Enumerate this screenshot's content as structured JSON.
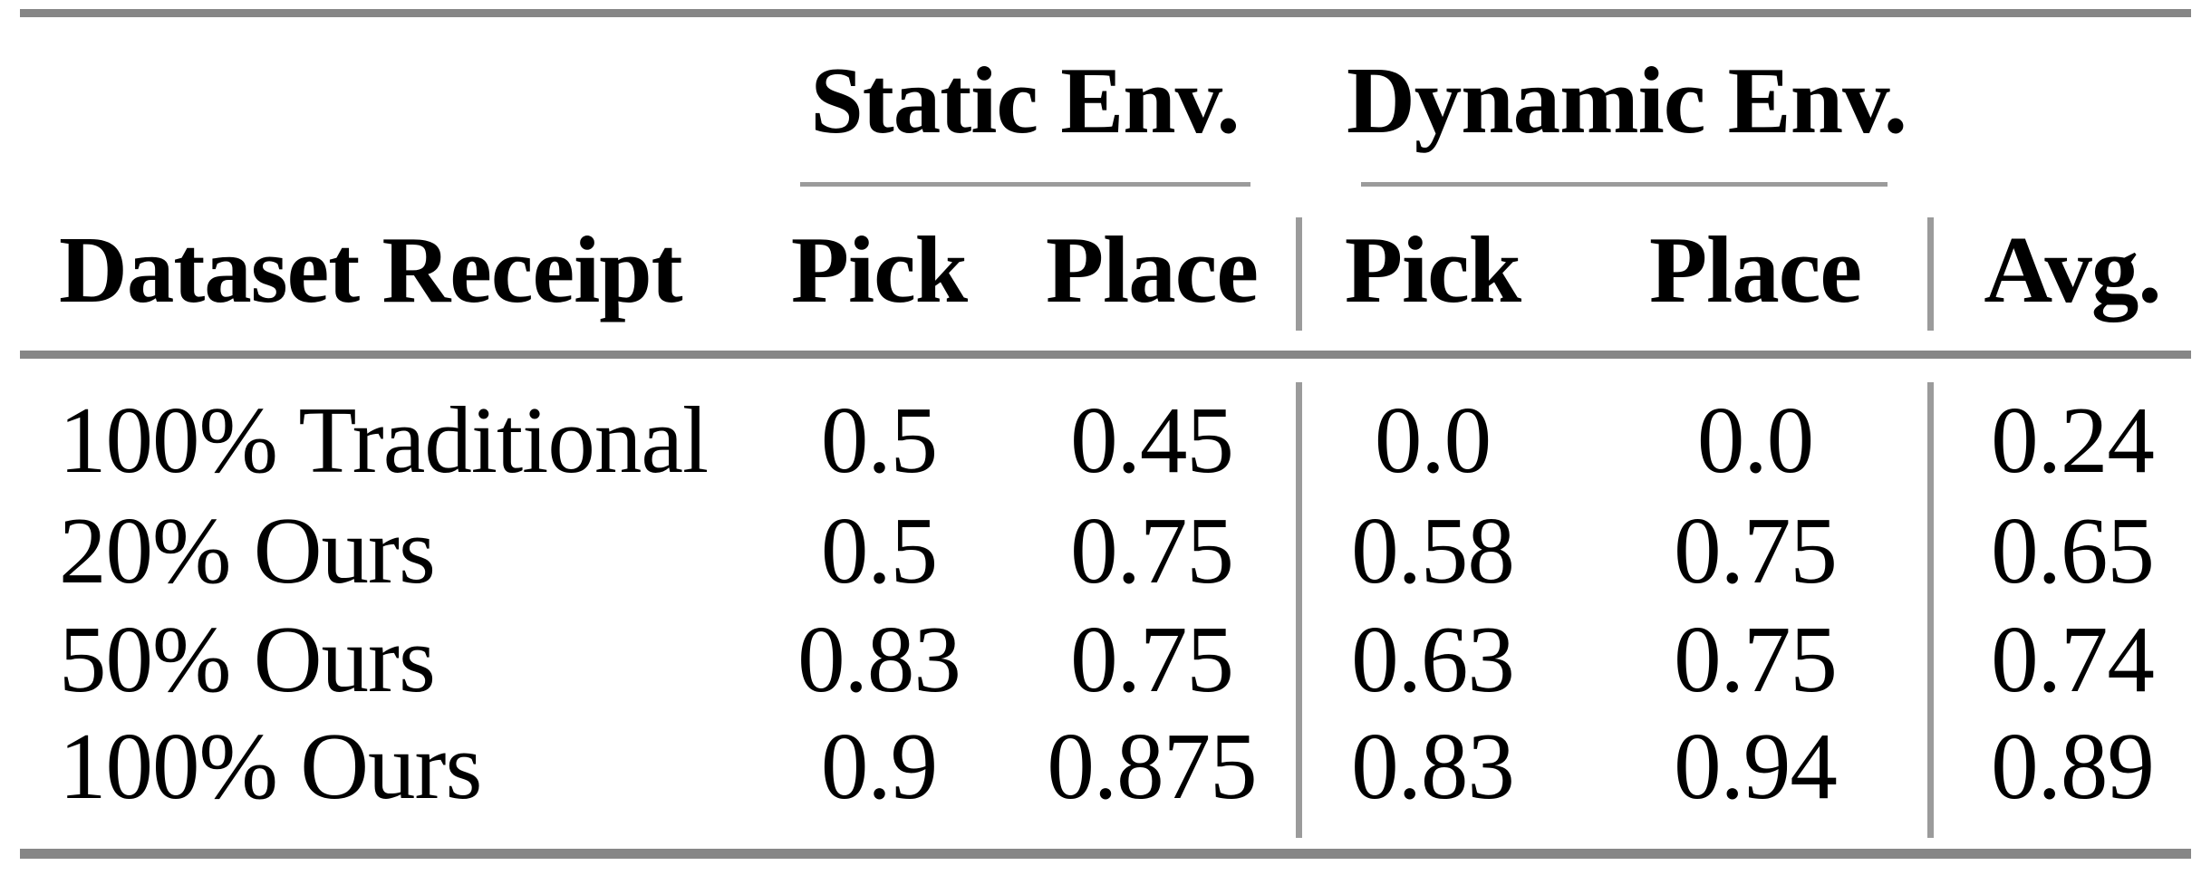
{
  "table": {
    "column_groups": [
      {
        "label": "Static Env."
      },
      {
        "label": "Dynamic Env."
      }
    ],
    "headers": {
      "row_label": "Dataset Receipt",
      "static_pick": "Pick",
      "static_place": "Place",
      "dynamic_pick": "Pick",
      "dynamic_place": "Place",
      "avg": "Avg."
    },
    "rows": [
      {
        "label": "100% Traditional",
        "static_pick": "0.5",
        "static_place": "0.45",
        "dynamic_pick": "0.0",
        "dynamic_place": "0.0",
        "avg": "0.24"
      },
      {
        "label": "20% Ours",
        "static_pick": "0.5",
        "static_place": "0.75",
        "dynamic_pick": "0.58",
        "dynamic_place": "0.75",
        "avg": "0.65"
      },
      {
        "label": "50% Ours",
        "static_pick": "0.83",
        "static_place": "0.75",
        "dynamic_pick": "0.63",
        "dynamic_place": "0.75",
        "avg": "0.74"
      },
      {
        "label": "100% Ours",
        "static_pick": "0.9",
        "static_place": "0.875",
        "dynamic_pick": "0.83",
        "dynamic_place": "0.94",
        "avg": "0.89"
      }
    ],
    "colors": {
      "rule_heavy": "#868686",
      "rule_light": "#9b9b9b",
      "text": "#000000",
      "background": "#ffffff"
    }
  },
  "chart_data": {
    "type": "table",
    "title": "",
    "column_groups": [
      "Static Env.",
      "Dynamic Env."
    ],
    "columns": [
      "Dataset Receipt",
      "Static Pick",
      "Static Place",
      "Dynamic Pick",
      "Dynamic Place",
      "Avg."
    ],
    "rows": [
      [
        "100% Traditional",
        0.5,
        0.45,
        0.0,
        0.0,
        0.24
      ],
      [
        "20% Ours",
        0.5,
        0.75,
        0.58,
        0.75,
        0.65
      ],
      [
        "50% Ours",
        0.83,
        0.75,
        0.63,
        0.75,
        0.74
      ],
      [
        "100% Ours",
        0.9,
        0.875,
        0.83,
        0.94,
        0.89
      ]
    ]
  }
}
